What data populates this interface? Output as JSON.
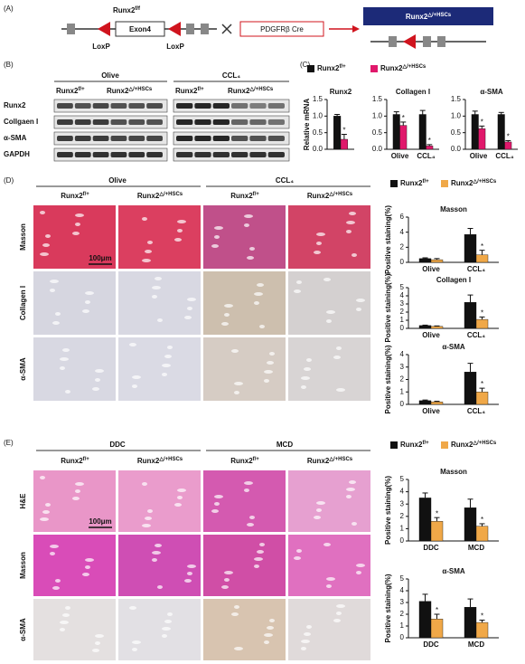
{
  "panel_a": {
    "label": "(A)",
    "gene": {
      "text": "Runx2",
      "sup": "f/f"
    },
    "exon": "Exon4",
    "loxp": [
      "LoxP",
      "LoxP"
    ],
    "cre": "PDGFRβ Cre",
    "result": {
      "text": "Runx2",
      "sup": "△/+HSCs"
    }
  },
  "panel_b": {
    "label": "(B)",
    "groups": [
      "Olive",
      "CCL₄"
    ],
    "genotypes": [
      {
        "text": "Runx2",
        "sup": "f/+"
      },
      {
        "text": "Runx2",
        "sup": "△/+HSCs"
      }
    ],
    "rows": [
      "Runx2",
      "Collgaen I",
      "α-SMA",
      "GAPDH"
    ]
  },
  "panel_c": {
    "label": "(C)",
    "charts": [
      {
        "type": "bar",
        "title": "Runx2",
        "ylabel": "Relative mRNA",
        "categories": [
          null
        ],
        "ylim": [
          0,
          1.5
        ],
        "yticks": [
          {
            "value": 0,
            "label": "0.0"
          },
          {
            "value": 0.5,
            "label": "0.5"
          },
          {
            "value": 1,
            "label": "1.0"
          },
          {
            "value": 1.5,
            "label": "1.5"
          }
        ],
        "series": [
          {
            "name": "Runx2",
            "name_sup": "f/+",
            "color": "#111111",
            "values": [
              1.0
            ],
            "errors": [
              0.05
            ],
            "sig": [
              null
            ]
          },
          {
            "name": "Runx2",
            "name_sup": "△/+HSCs",
            "color": "#e0186b",
            "values": [
              0.3
            ],
            "errors": [
              0.15
            ],
            "sig": [
              "*"
            ]
          }
        ]
      },
      {
        "type": "bar",
        "title": "Collagen I",
        "categories": [
          "Olive",
          "CCL₄"
        ],
        "ylim": [
          0,
          1.5
        ],
        "yticks": [
          {
            "value": 0,
            "label": "0.0"
          },
          {
            "value": 0.5,
            "label": "0.5"
          },
          {
            "value": 1,
            "label": "1.0"
          },
          {
            "value": 1.5,
            "label": "1.5"
          }
        ],
        "series": [
          {
            "color": "#111111",
            "values": [
              1.05,
              1.05
            ],
            "errors": [
              0.08,
              0.12
            ],
            "sig": [
              null,
              null
            ]
          },
          {
            "color": "#e0186b",
            "values": [
              0.72,
              0.1
            ],
            "errors": [
              0.1,
              0.04
            ],
            "sig": [
              "*",
              "*"
            ]
          }
        ]
      },
      {
        "type": "bar",
        "title": "α-SMA",
        "categories": [
          "Olive",
          "CCL₄"
        ],
        "ylim": [
          0,
          1.5
        ],
        "yticks": [
          {
            "value": 0,
            "label": "0.0"
          },
          {
            "value": 0.5,
            "label": "0.5"
          },
          {
            "value": 1,
            "label": "1.0"
          },
          {
            "value": 1.5,
            "label": "1.5"
          }
        ],
        "series": [
          {
            "color": "#111111",
            "values": [
              1.05,
              1.05
            ],
            "errors": [
              0.1,
              0.06
            ],
            "sig": [
              null,
              null
            ]
          },
          {
            "color": "#e0186b",
            "values": [
              0.62,
              0.22
            ],
            "errors": [
              0.08,
              0.04
            ],
            "sig": [
              "*",
              "*"
            ]
          }
        ]
      }
    ]
  },
  "panel_d": {
    "label": "(D)",
    "groups": [
      "Olive",
      "CCL₄"
    ],
    "genotypes": [
      {
        "text": "Runx2",
        "sup": "f/+"
      },
      {
        "text": "Runx2",
        "sup": "△/+HSCs"
      }
    ],
    "rows": [
      "Masson",
      "Collagen I",
      "α-SMA"
    ],
    "scale_bar": "100μm",
    "charts": [
      {
        "type": "bar",
        "title": "Masson",
        "ylabel": "Positive staining(%)",
        "categories": [
          "Olive",
          "CCL₄"
        ],
        "ylim": [
          0,
          6
        ],
        "yticks": [
          0,
          2,
          4,
          6
        ],
        "series": [
          {
            "name": "Runx2",
            "name_sup": "f/+",
            "color": "#111111",
            "values": [
              0.5,
              3.7
            ],
            "errors": [
              0.1,
              0.8
            ],
            "sig": [
              null,
              null
            ]
          },
          {
            "name": "Runx2",
            "name_sup": "△/+HSCs",
            "color": "#f0a848",
            "values": [
              0.35,
              1.0
            ],
            "errors": [
              0.15,
              0.6
            ],
            "sig": [
              null,
              "*"
            ]
          }
        ]
      },
      {
        "type": "bar",
        "title": "Collagen I",
        "ylabel": "Positive staining(%)",
        "categories": [
          "Olive",
          "CCL₄"
        ],
        "ylim": [
          0,
          5
        ],
        "yticks": [
          0,
          1,
          2,
          3,
          4,
          5
        ],
        "series": [
          {
            "color": "#111111",
            "values": [
              0.35,
              3.2
            ],
            "errors": [
              0.05,
              0.9
            ],
            "sig": [
              null,
              null
            ]
          },
          {
            "color": "#f0a848",
            "values": [
              0.25,
              1.1
            ],
            "errors": [
              0.05,
              0.3
            ],
            "sig": [
              null,
              "*"
            ]
          }
        ]
      },
      {
        "type": "bar",
        "title": "α-SMA",
        "ylabel": "Positive staining(%)",
        "categories": [
          "Olive",
          "CCL₄"
        ],
        "ylim": [
          0,
          4
        ],
        "yticks": [
          0,
          1,
          2,
          3,
          4
        ],
        "series": [
          {
            "color": "#111111",
            "values": [
              0.3,
              2.6
            ],
            "errors": [
              0.05,
              0.7
            ],
            "sig": [
              null,
              null
            ]
          },
          {
            "color": "#f0a848",
            "values": [
              0.2,
              1.0
            ],
            "errors": [
              0.05,
              0.3
            ],
            "sig": [
              null,
              "*"
            ]
          }
        ]
      }
    ]
  },
  "panel_e": {
    "label": "(E)",
    "groups": [
      "DDC",
      "MCD"
    ],
    "genotypes": [
      {
        "text": "Runx2",
        "sup": "f/+"
      },
      {
        "text": "Runx2",
        "sup": "△/+HSCs"
      }
    ],
    "rows": [
      "H&E",
      "Masson",
      "α-SMA"
    ],
    "scale_bar": "100μm",
    "charts": [
      {
        "type": "bar",
        "title": "Masson",
        "ylabel": "Positive staining(%)",
        "categories": [
          "DDC",
          "MCD"
        ],
        "ylim": [
          0,
          5
        ],
        "yticks": [
          0,
          1,
          2,
          3,
          4,
          5
        ],
        "series": [
          {
            "name": "Runx2",
            "name_sup": "f/+",
            "color": "#111111",
            "values": [
              3.5,
              2.7
            ],
            "errors": [
              0.4,
              0.7
            ],
            "sig": [
              null,
              null
            ]
          },
          {
            "name": "Runx2",
            "name_sup": "△/+HSCs",
            "color": "#f0a848",
            "values": [
              1.6,
              1.2
            ],
            "errors": [
              0.3,
              0.2
            ],
            "sig": [
              "*",
              "*"
            ]
          }
        ]
      },
      {
        "type": "bar",
        "title": "α-SMA",
        "ylabel": "Positive staining(%)",
        "categories": [
          "DDC",
          "MCD"
        ],
        "ylim": [
          0,
          5
        ],
        "yticks": [
          0,
          1,
          2,
          3,
          4,
          5
        ],
        "series": [
          {
            "color": "#111111",
            "values": [
              3.1,
              2.6
            ],
            "errors": [
              0.6,
              0.7
            ],
            "sig": [
              null,
              null
            ]
          },
          {
            "color": "#f0a848",
            "values": [
              1.6,
              1.3
            ],
            "errors": [
              0.4,
              0.2
            ],
            "sig": [
              "*",
              "*"
            ]
          }
        ]
      }
    ]
  }
}
